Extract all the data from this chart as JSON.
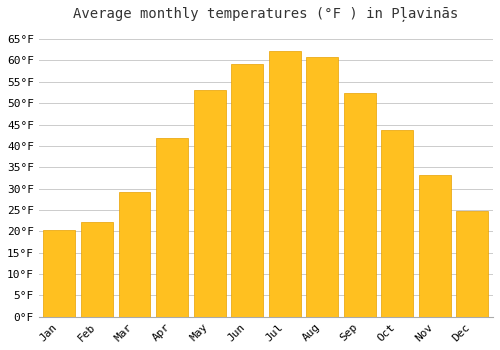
{
  "title": "Average monthly temperatures (°F ) in Pļavinās",
  "months": [
    "Jan",
    "Feb",
    "Mar",
    "Apr",
    "May",
    "Jun",
    "Jul",
    "Aug",
    "Sep",
    "Oct",
    "Nov",
    "Dec"
  ],
  "values": [
    20.3,
    22.1,
    29.1,
    41.9,
    53.1,
    59.2,
    62.1,
    60.8,
    52.3,
    43.7,
    33.3,
    24.8
  ],
  "bar_color": "#FFC020",
  "bar_edge_color": "#E8A000",
  "background_color": "#ffffff",
  "grid_color": "#cccccc",
  "ylim": [
    0,
    68
  ],
  "yticks": [
    0,
    5,
    10,
    15,
    20,
    25,
    30,
    35,
    40,
    45,
    50,
    55,
    60,
    65
  ],
  "ylabel_suffix": "°F",
  "title_fontsize": 10,
  "tick_fontsize": 8,
  "font_family": "monospace"
}
